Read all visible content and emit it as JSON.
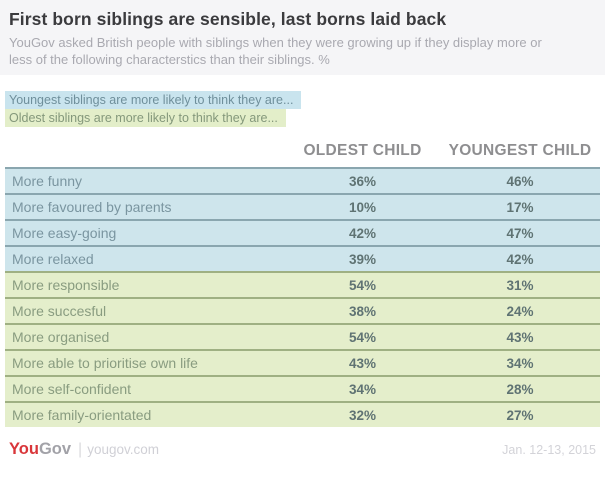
{
  "header": {
    "title": "First born siblings are sensible, last borns laid back",
    "subtitle": "YouGov asked British people with siblings when they were growing up if they display more or less of the following characterstics than their siblings. %"
  },
  "legend": {
    "youngest": "Youngest siblings are more likely to think they are...",
    "oldest": "Oldest siblings are more likely to think they are..."
  },
  "table": {
    "columns": [
      "OLDEST CHILD",
      "YOUNGEST CHILD"
    ],
    "rows": [
      {
        "label": "More funny",
        "oldest": "36%",
        "youngest": "46%",
        "group": "youngest"
      },
      {
        "label": "More favoured by parents",
        "oldest": "10%",
        "youngest": "17%",
        "group": "youngest"
      },
      {
        "label": "More easy-going",
        "oldest": "42%",
        "youngest": "47%",
        "group": "youngest"
      },
      {
        "label": "More relaxed",
        "oldest": "39%",
        "youngest": "42%",
        "group": "youngest"
      },
      {
        "label": "More responsible",
        "oldest": "54%",
        "youngest": "31%",
        "group": "oldest"
      },
      {
        "label": "More succesful",
        "oldest": "38%",
        "youngest": "24%",
        "group": "oldest"
      },
      {
        "label": "More organised",
        "oldest": "54%",
        "youngest": "43%",
        "group": "oldest"
      },
      {
        "label": "More able to prioritise own life",
        "oldest": "43%",
        "youngest": "34%",
        "group": "oldest"
      },
      {
        "label": "More self-confident",
        "oldest": "34%",
        "youngest": "28%",
        "group": "oldest"
      },
      {
        "label": "More family-orientated",
        "oldest": "32%",
        "youngest": "27%",
        "group": "oldest"
      }
    ]
  },
  "footer": {
    "brand_you": "You",
    "brand_gov": "Gov",
    "divider": "|",
    "site": "yougov.com",
    "date": "Jan. 12-13, 2015"
  },
  "colors": {
    "youngest_highlight": "#cee5ec",
    "oldest_highlight": "#e4eecb",
    "brand_red": "#d9363a",
    "banner_background": "#f5f5f7"
  },
  "chart_data": {
    "type": "table",
    "title": "First born siblings are sensible, last borns laid back",
    "subtitle": "YouGov asked British people with siblings when they were growing up if they display more or less of the following characterstics than their siblings. %",
    "categories": [
      "More funny",
      "More favoured by parents",
      "More easy-going",
      "More relaxed",
      "More responsible",
      "More succesful",
      "More organised",
      "More able to prioritise own life",
      "More self-confident",
      "More family-orientated"
    ],
    "series": [
      {
        "name": "OLDEST CHILD",
        "values": [
          36,
          10,
          42,
          39,
          54,
          38,
          54,
          43,
          34,
          32
        ]
      },
      {
        "name": "YOUNGEST CHILD",
        "values": [
          46,
          17,
          47,
          42,
          31,
          24,
          43,
          34,
          28,
          27
        ]
      }
    ],
    "groups": {
      "youngest_more_likely": [
        "More funny",
        "More favoured by parents",
        "More easy-going",
        "More relaxed"
      ],
      "oldest_more_likely": [
        "More responsible",
        "More succesful",
        "More organised",
        "More able to prioritise own life",
        "More self-confident",
        "More family-orientated"
      ]
    },
    "units": "%",
    "source": "YouGov",
    "date_label": "Jan. 12-13, 2015"
  }
}
